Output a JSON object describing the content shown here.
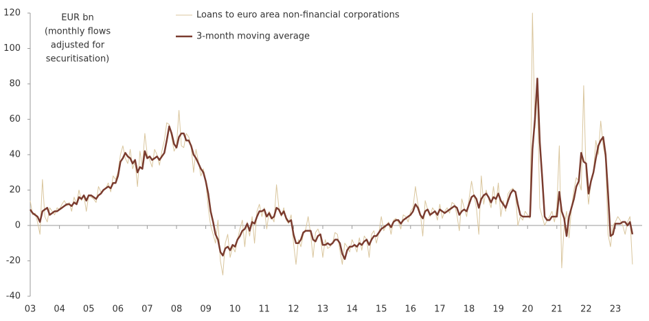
{
  "chart_data": {
    "type": "line",
    "annotation": [
      "EUR bn",
      "(monthly flows",
      "adjusted for",
      "securitisation)"
    ],
    "categories": [
      "03",
      null,
      null,
      null,
      null,
      null,
      null,
      null,
      null,
      null,
      null,
      null,
      "04",
      null,
      null,
      null,
      null,
      null,
      null,
      null,
      null,
      null,
      null,
      null,
      "05",
      null,
      null,
      null,
      null,
      null,
      null,
      null,
      null,
      null,
      null,
      null,
      "06",
      null,
      null,
      null,
      null,
      null,
      null,
      null,
      null,
      null,
      null,
      null,
      "07",
      null,
      null,
      null,
      null,
      null,
      null,
      null,
      null,
      null,
      null,
      null,
      "08",
      null,
      null,
      null,
      null,
      null,
      null,
      null,
      null,
      null,
      null,
      null,
      "09",
      null,
      null,
      null,
      null,
      null,
      null,
      null,
      null,
      null,
      null,
      null,
      "10",
      null,
      null,
      null,
      null,
      null,
      null,
      null,
      null,
      null,
      null,
      null,
      "11",
      null,
      null,
      null,
      null,
      null,
      null,
      null,
      null,
      null,
      null,
      null,
      "12",
      null,
      null,
      null,
      null,
      null,
      null,
      null,
      null,
      null,
      null,
      null,
      "13",
      null,
      null,
      null,
      null,
      null,
      null,
      null,
      null,
      null,
      null,
      null,
      "14",
      null,
      null,
      null,
      null,
      null,
      null,
      null,
      null,
      null,
      null,
      null,
      "15",
      null,
      null,
      null,
      null,
      null,
      null,
      null,
      null,
      null,
      null,
      null,
      "16",
      null,
      null,
      null,
      null,
      null,
      null,
      null,
      null,
      null,
      null,
      null,
      "17",
      null,
      null,
      null,
      null,
      null,
      null,
      null,
      null,
      null,
      null,
      null,
      "18",
      null,
      null,
      null,
      null,
      null,
      null,
      null,
      null,
      null,
      null,
      null,
      "19",
      null,
      null,
      null,
      null,
      null,
      null,
      null,
      null,
      null,
      null,
      null,
      "20",
      null,
      null,
      null,
      null,
      null,
      null,
      null,
      null,
      null,
      null,
      null,
      "21",
      null,
      null,
      null,
      null,
      null,
      null,
      null,
      null,
      null,
      null,
      null,
      "22",
      null,
      null,
      null,
      null,
      null,
      null,
      null,
      null,
      null,
      null,
      null,
      "23",
      null,
      null,
      null,
      null,
      null,
      null,
      null
    ],
    "series": [
      {
        "name": "Loans to euro area non-financial corporations",
        "color": "#d9c59c",
        "width": 1,
        "values": [
          14,
          6,
          7,
          2,
          -5,
          26,
          5,
          2,
          10,
          8,
          6,
          10,
          9,
          12,
          14,
          11,
          13,
          8,
          16,
          12,
          20,
          14,
          17,
          8,
          17,
          16,
          15,
          13,
          22,
          19,
          20,
          21,
          24,
          19,
          28,
          26,
          30,
          40,
          45,
          38,
          35,
          43,
          32,
          36,
          22,
          42,
          33,
          52,
          40,
          37,
          33,
          43,
          40,
          34,
          42,
          48,
          58,
          57,
          50,
          42,
          45,
          65,
          45,
          44,
          52,
          50,
          45,
          30,
          43,
          36,
          28,
          32,
          25,
          10,
          0,
          -5,
          -10,
          3,
          -20,
          -28,
          -10,
          -5,
          -18,
          -12,
          -15,
          -8,
          -2,
          3,
          -12,
          2,
          -6,
          5,
          -10,
          8,
          12,
          5,
          10,
          -2,
          8,
          5,
          2,
          23,
          10,
          5,
          10,
          3,
          1,
          6,
          -10,
          -22,
          -8,
          -12,
          -5,
          -2,
          5,
          -5,
          -18,
          -4,
          -2,
          -6,
          -18,
          -8,
          -13,
          -12,
          -10,
          -4,
          -5,
          -14,
          -22,
          -10,
          -12,
          -15,
          -8,
          -11,
          -15,
          -7,
          -14,
          -6,
          -8,
          -18,
          -5,
          -3,
          -10,
          -4,
          5,
          -3,
          0,
          2,
          -5,
          3,
          4,
          2,
          -2,
          6,
          5,
          2,
          8,
          10,
          22,
          12,
          7,
          -6,
          14,
          9,
          5,
          10,
          8,
          3,
          12,
          4,
          8,
          10,
          7,
          13,
          12,
          6,
          -3,
          15,
          10,
          5,
          15,
          25,
          17,
          10,
          -5,
          28,
          12,
          20,
          15,
          10,
          22,
          12,
          24,
          5,
          14,
          8,
          18,
          20,
          21,
          18,
          0,
          5,
          3,
          8,
          6,
          4,
          120,
          55,
          75,
          10,
          5,
          0,
          3,
          5,
          8,
          2,
          10,
          45,
          -24,
          0,
          8,
          -7,
          10,
          20,
          27,
          25,
          20,
          79,
          28,
          12,
          25,
          30,
          48,
          40,
          59,
          45,
          38,
          -5,
          -12,
          0,
          2,
          5,
          3,
          0,
          -5,
          2,
          5,
          -22
        ]
      },
      {
        "name": "3-month moving average",
        "color": "#7a3b2e",
        "width": 2.5,
        "values": [
          9,
          7,
          6,
          5,
          2,
          8,
          9,
          10,
          6,
          7,
          8,
          8,
          9,
          10,
          11,
          12,
          12,
          11,
          13,
          12,
          16,
          15,
          17,
          14,
          17,
          17,
          16,
          15,
          17,
          18,
          20,
          21,
          22,
          21,
          24,
          24,
          28,
          36,
          38,
          41,
          39,
          38,
          35,
          37,
          30,
          33,
          32,
          42,
          38,
          39,
          37,
          38,
          39,
          37,
          39,
          41,
          48,
          56,
          52,
          46,
          44,
          50,
          52,
          52,
          48,
          48,
          45,
          40,
          38,
          35,
          32,
          30,
          25,
          18,
          8,
          2,
          -5,
          -8,
          -15,
          -17,
          -13,
          -12,
          -14,
          -11,
          -12,
          -8,
          -6,
          -3,
          -2,
          1,
          -3,
          2,
          1,
          5,
          8,
          8,
          9,
          5,
          7,
          4,
          5,
          10,
          9,
          6,
          8,
          4,
          2,
          3,
          -5,
          -10,
          -10,
          -8,
          -4,
          -3,
          -3,
          -3,
          -8,
          -9,
          -6,
          -5,
          -11,
          -11,
          -10,
          -11,
          -10,
          -8,
          -8,
          -10,
          -16,
          -19,
          -14,
          -12,
          -12,
          -11,
          -12,
          -10,
          -11,
          -9,
          -8,
          -11,
          -8,
          -6,
          -6,
          -4,
          -2,
          -1,
          0,
          1,
          -1,
          2,
          3,
          3,
          1,
          3,
          4,
          5,
          6,
          8,
          12,
          10,
          6,
          4,
          8,
          9,
          6,
          7,
          8,
          6,
          9,
          8,
          7,
          8,
          9,
          10,
          11,
          10,
          6,
          8,
          9,
          8,
          12,
          16,
          17,
          15,
          10,
          15,
          17,
          18,
          16,
          13,
          16,
          15,
          18,
          14,
          12,
          10,
          14,
          18,
          20,
          19,
          12,
          6,
          5,
          5,
          5,
          5,
          43,
          60,
          83,
          47,
          27,
          5,
          3,
          3,
          5,
          5,
          5,
          19,
          8,
          4,
          -6,
          5,
          10,
          15,
          22,
          25,
          41,
          36,
          35,
          18,
          25,
          30,
          38,
          45,
          48,
          50,
          40,
          18,
          -6,
          -5,
          1,
          1,
          1,
          2,
          2,
          0,
          2,
          -5
        ]
      }
    ],
    "ylim": [
      -40,
      120
    ],
    "yticks": [
      -40,
      -20,
      0,
      20,
      40,
      60,
      80,
      100,
      120
    ],
    "grid": false
  }
}
